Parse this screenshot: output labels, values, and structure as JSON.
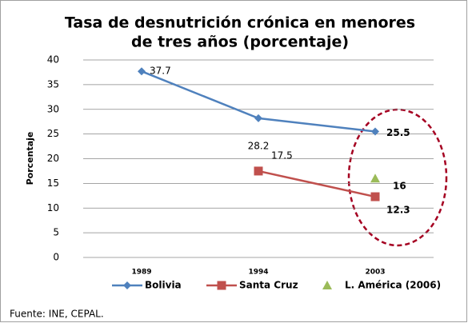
{
  "chart_data": {
    "type": "line",
    "title": [
      "Tasa de desnutrición crónica en menores",
      "de tres años (porcentaje)"
    ],
    "y_label": "Porcentaje",
    "categories": [
      "1989",
      "1994",
      "2003"
    ],
    "series": [
      {
        "name": "Bolivia",
        "color": "#4f81bd",
        "marker": "diamond",
        "values": [
          37.7,
          28.2,
          25.5
        ]
      },
      {
        "name": "Santa Cruz",
        "color": "#c0504d",
        "marker": "square",
        "values": [
          null,
          17.5,
          12.3
        ]
      },
      {
        "name": "L. América (2006)",
        "color": "#9bbb59",
        "marker": "triangle",
        "line": false,
        "values": [
          null,
          null,
          16
        ]
      }
    ],
    "ylim": [
      0,
      40
    ],
    "yticks": [
      0,
      5,
      10,
      15,
      20,
      25,
      30,
      35,
      40
    ],
    "grid": true,
    "source": "Fuente: INE, CEPAL."
  }
}
